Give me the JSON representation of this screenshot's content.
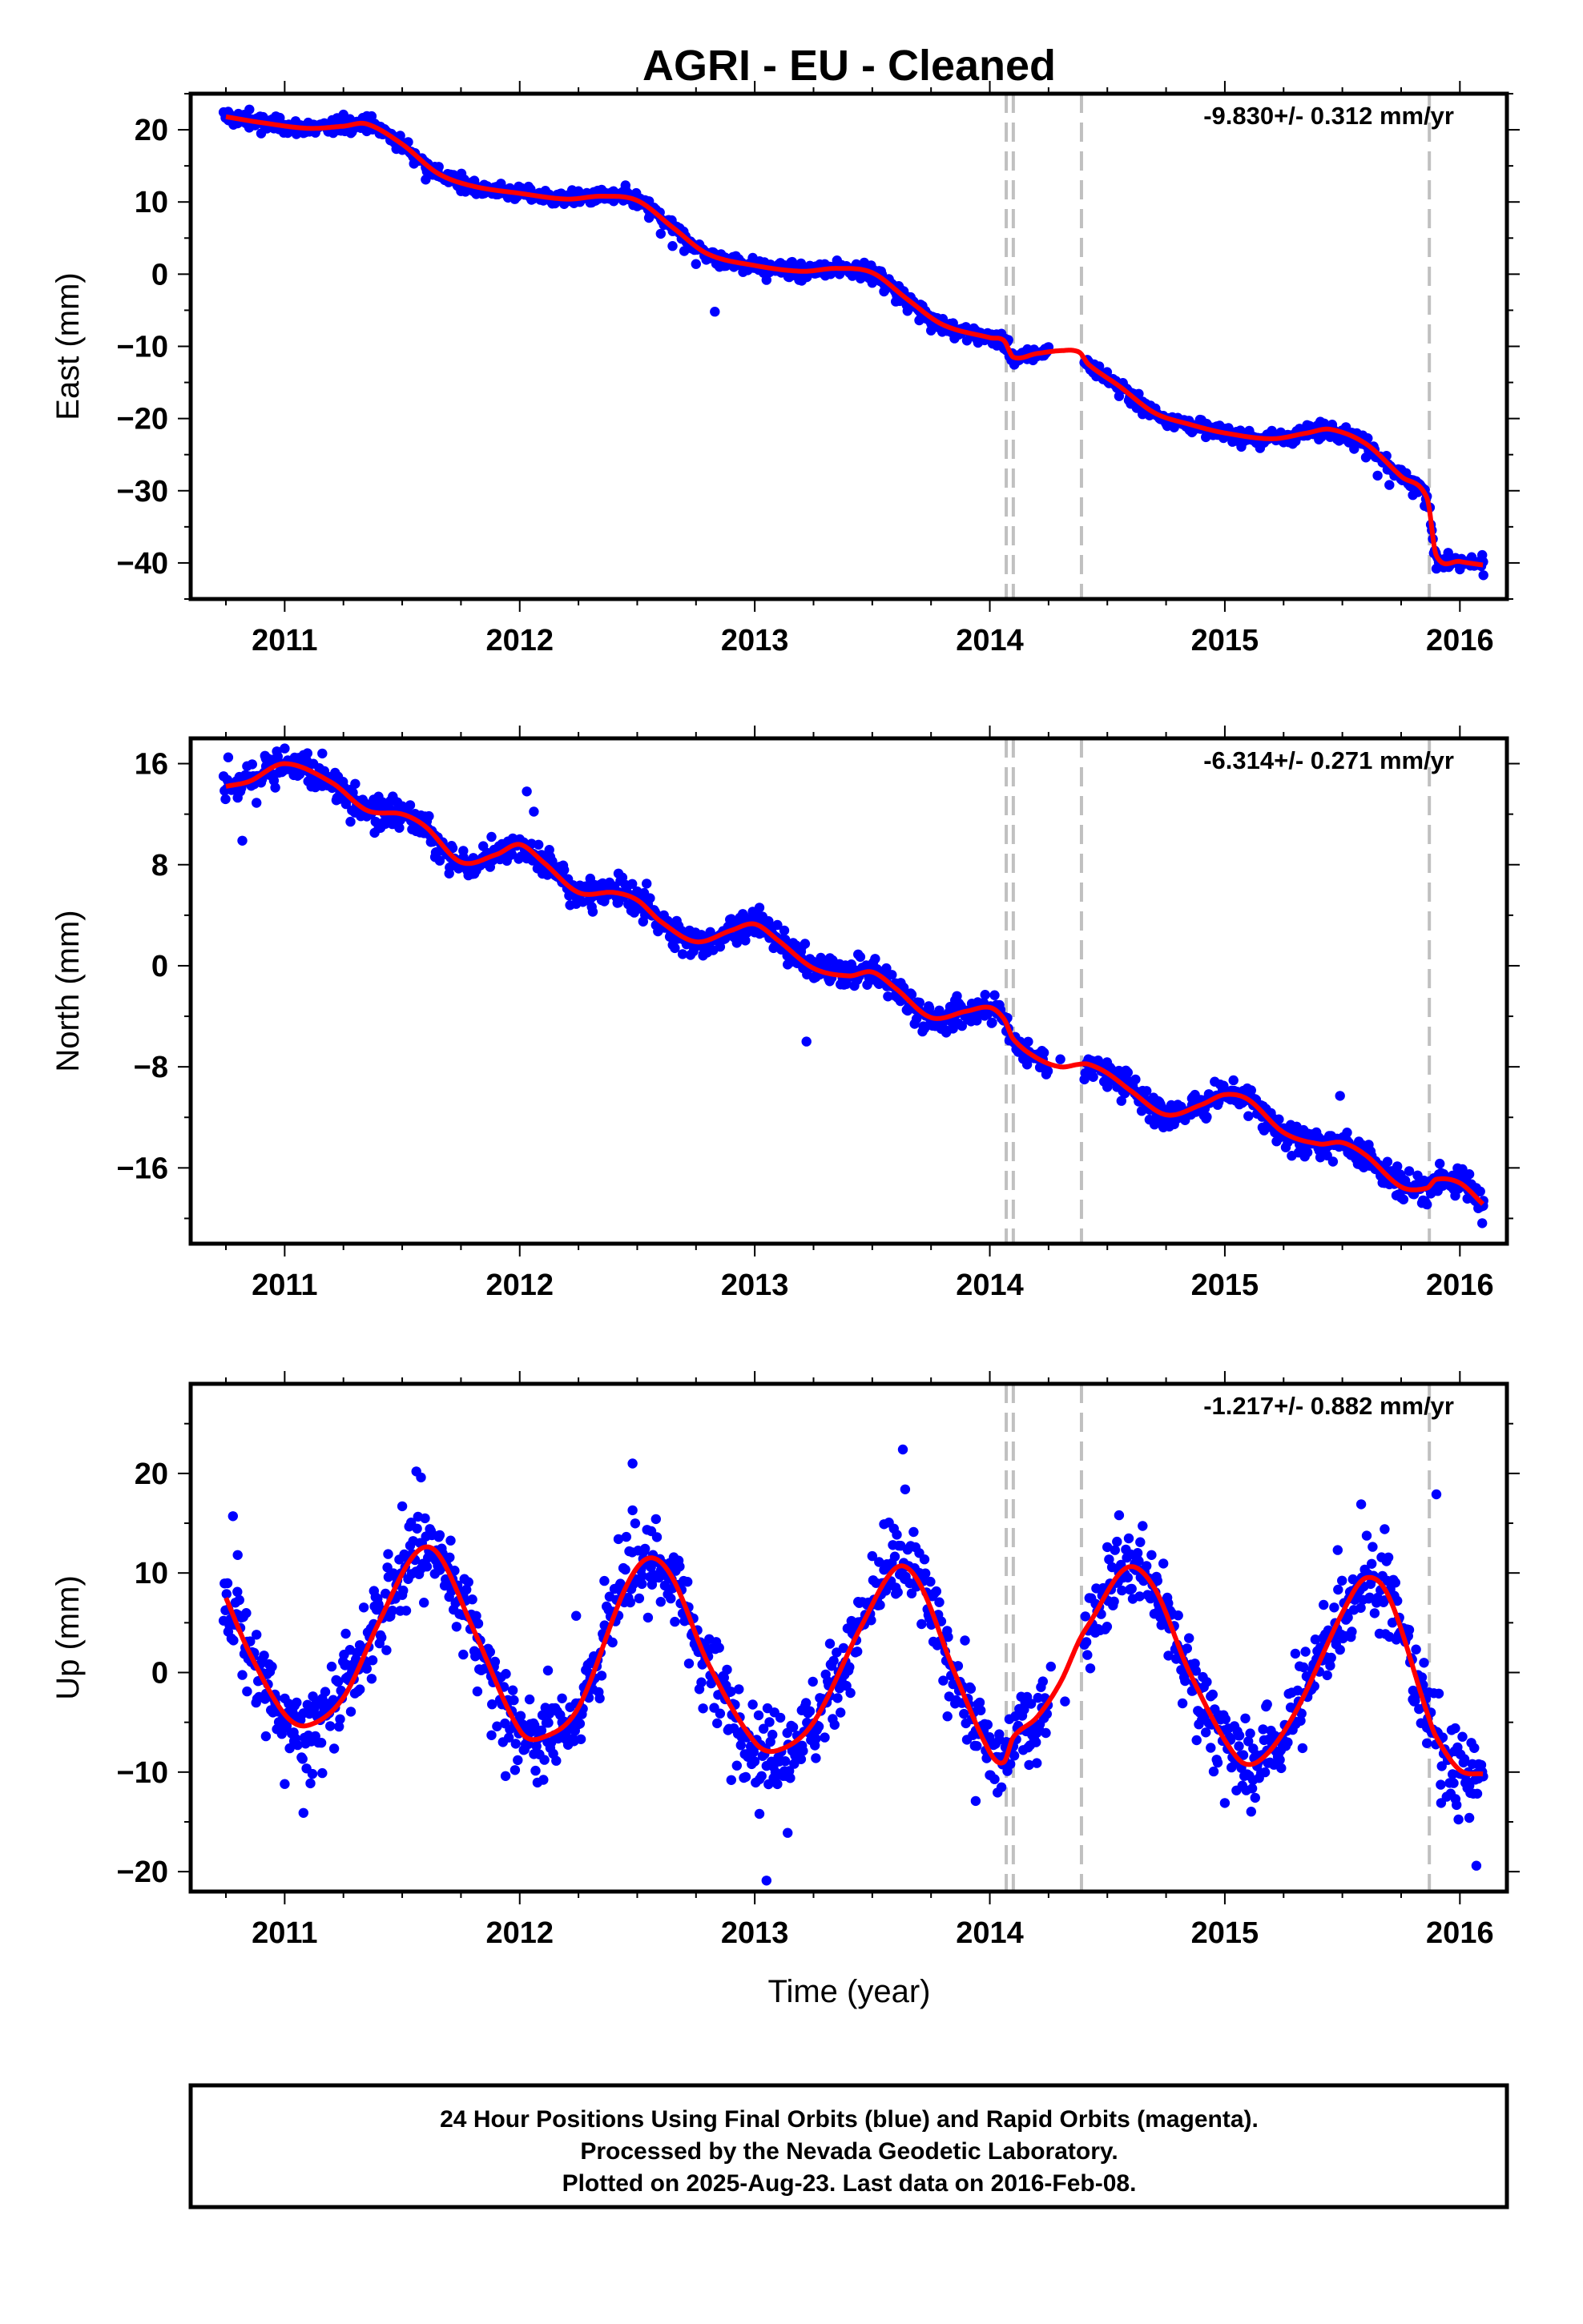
{
  "title": "AGRI  - EU - Cleaned",
  "x_axis_label": "Time (year)",
  "footer": {
    "line1": "24 Hour Positions Using Final Orbits (blue) and Rapid Orbits (magenta).",
    "line2": "Processed by the Nevada Geodetic Laboratory.",
    "line3": "Plotted on 2025-Aug-23. Last data on 2016-Feb-08."
  },
  "colors": {
    "final_orbits": "#0000ff",
    "model_fit": "#ff0000",
    "event_lines": "#c0c0c0",
    "frame": "#000000"
  },
  "chart_data": [
    {
      "type": "scatter",
      "component": "East",
      "ylabel": "East (mm)",
      "xlabel": "",
      "rate_label": "-9.830+/- 0.312 mm/yr",
      "xlim": [
        2010.6,
        2016.2
      ],
      "ylim": [
        -45,
        25
      ],
      "xticks": [
        2011,
        2012,
        2013,
        2014,
        2015,
        2016
      ],
      "yticks": [
        -40,
        -30,
        -20,
        -10,
        0,
        10,
        20
      ],
      "event_lines_x": [
        2014.07,
        2014.1,
        2014.39,
        2015.87
      ],
      "model_fit_knots": {
        "x": [
          2010.75,
          2010.9,
          2011.1,
          2011.25,
          2011.35,
          2011.5,
          2011.65,
          2011.8,
          2012.0,
          2012.2,
          2012.35,
          2012.5,
          2012.65,
          2012.8,
          2013.0,
          2013.2,
          2013.35,
          2013.5,
          2013.65,
          2013.8,
          2014.0,
          2014.06,
          2014.1,
          2014.2,
          2014.3,
          2014.38,
          2014.42,
          2014.55,
          2014.7,
          2014.85,
          2015.0,
          2015.2,
          2015.35,
          2015.45,
          2015.6,
          2015.75,
          2015.86,
          2015.9,
          2016.0,
          2016.1
        ],
        "y": [
          21.8,
          21.0,
          20.2,
          20.5,
          20.8,
          18.0,
          14.0,
          12.2,
          11.2,
          10.4,
          10.8,
          10.2,
          6.5,
          2.8,
          1.2,
          0.4,
          0.8,
          0.2,
          -3.5,
          -7.0,
          -8.8,
          -9.2,
          -11.5,
          -11.0,
          -10.6,
          -10.8,
          -12.5,
          -15.5,
          -19.2,
          -20.8,
          -22.0,
          -22.8,
          -22.0,
          -21.5,
          -23.5,
          -28.0,
          -31.0,
          -39.0,
          -39.8,
          -40.3
        ]
      },
      "series": [
        {
          "name": "Final Orbits",
          "points_x": [
            2010.76,
            2010.8,
            2010.85,
            2010.9,
            2010.95,
            2011.0,
            2011.05,
            2011.1,
            2011.15,
            2011.2,
            2011.25,
            2011.3,
            2011.35,
            2011.4,
            2011.45,
            2011.5,
            2011.55,
            2011.6,
            2011.65,
            2011.7,
            2011.75,
            2011.8,
            2011.85,
            2011.9,
            2011.95,
            2012.0,
            2012.05,
            2012.1,
            2012.15,
            2012.2,
            2012.25,
            2012.3,
            2012.35,
            2012.4,
            2012.45,
            2012.5,
            2012.55,
            2012.6,
            2012.65,
            2012.7,
            2012.75,
            2012.8,
            2012.85,
            2012.9,
            2012.95,
            2013.0,
            2013.05,
            2013.1,
            2013.15,
            2013.2,
            2013.25,
            2013.3,
            2013.35,
            2013.4,
            2013.45,
            2013.5,
            2013.55,
            2013.6,
            2013.65,
            2013.7,
            2013.75,
            2013.8,
            2013.85,
            2013.9,
            2013.95,
            2014.0,
            2014.03,
            2014.06,
            2014.12,
            2014.16,
            2014.2,
            2014.25,
            2014.42,
            2014.45,
            2014.5,
            2014.55,
            2014.6,
            2014.65,
            2014.7,
            2014.75,
            2014.8,
            2014.85,
            2014.9,
            2014.95,
            2015.0,
            2015.05,
            2015.1,
            2015.15,
            2015.2,
            2015.25,
            2015.3,
            2015.35,
            2015.4,
            2015.45,
            2015.5,
            2015.55,
            2015.6,
            2015.65,
            2015.7,
            2015.75,
            2015.8,
            2015.85,
            2015.9,
            2015.95,
            2016.0,
            2016.05,
            2016.1,
            2012.83,
            2011.6,
            2013.62
          ],
          "points_y": [
            22.5,
            20.9,
            22.8,
            19.5,
            21.5,
            20.1,
            19.4,
            21.0,
            20.6,
            19.8,
            22.1,
            20.7,
            21.9,
            20.2,
            18.6,
            17.2,
            15.3,
            13.1,
            13.6,
            12.9,
            11.5,
            12.8,
            11.2,
            12.1,
            10.6,
            11.8,
            10.3,
            11.2,
            9.8,
            10.9,
            11.5,
            9.9,
            11.6,
            10.1,
            12.3,
            9.4,
            7.8,
            5.6,
            3.9,
            3.2,
            1.4,
            2.6,
            1.0,
            2.2,
            0.3,
            1.7,
            -0.8,
            1.3,
            0.0,
            -0.9,
            0.8,
            -0.2,
            1.9,
            0.4,
            -0.6,
            -1.2,
            -2.4,
            -3.8,
            -5.1,
            -6.4,
            -7.8,
            -6.2,
            -8.9,
            -7.7,
            -9.5,
            -8.4,
            -9.9,
            -10.3,
            -11.9,
            -10.4,
            -11.4,
            -10.1,
            -12.1,
            -13.9,
            -14.8,
            -16.9,
            -17.8,
            -19.4,
            -18.6,
            -20.7,
            -19.9,
            -21.6,
            -20.2,
            -22.3,
            -21.4,
            -23.1,
            -22.0,
            -24.1,
            -21.7,
            -23.3,
            -22.1,
            -20.9,
            -22.9,
            -21.2,
            -22.6,
            -24.2,
            -25.4,
            -27.9,
            -29.2,
            -28.4,
            -30.6,
            -32.1,
            -40.8,
            -38.6,
            -40.9,
            -39.2,
            -41.7,
            -5.2,
            14.8,
            -2.1
          ]
        }
      ]
    },
    {
      "type": "scatter",
      "component": "North",
      "ylabel": "North (mm)",
      "xlabel": "",
      "rate_label": "-6.314+/- 0.271 mm/yr",
      "xlim": [
        2010.6,
        2016.2
      ],
      "ylim": [
        -22,
        18
      ],
      "xticks": [
        2011,
        2012,
        2013,
        2014,
        2015,
        2016
      ],
      "yticks": [
        -16,
        -8,
        0,
        8,
        16
      ],
      "event_lines_x": [
        2014.07,
        2014.1,
        2014.39,
        2015.87
      ],
      "model_fit_knots": {
        "x": [
          2010.75,
          2010.85,
          2011.0,
          2011.2,
          2011.35,
          2011.5,
          2011.6,
          2011.75,
          2011.9,
          2012.0,
          2012.1,
          2012.25,
          2012.4,
          2012.5,
          2012.6,
          2012.75,
          2012.9,
          2013.0,
          2013.1,
          2013.25,
          2013.4,
          2013.5,
          2013.6,
          2013.75,
          2013.9,
          2014.0,
          2014.06,
          2014.1,
          2014.2,
          2014.3,
          2014.38,
          2014.42,
          2014.5,
          2014.6,
          2014.75,
          2014.9,
          2015.0,
          2015.1,
          2015.25,
          2015.4,
          2015.5,
          2015.6,
          2015.75,
          2015.86,
          2015.9,
          2016.0,
          2016.1
        ],
        "y": [
          14.2,
          14.6,
          16.0,
          14.5,
          12.3,
          12.0,
          11.0,
          8.2,
          8.8,
          9.6,
          8.2,
          5.8,
          5.8,
          5.2,
          3.5,
          1.9,
          2.8,
          3.3,
          2.0,
          -0.2,
          -0.8,
          -0.5,
          -1.8,
          -4.1,
          -3.6,
          -3.3,
          -4.2,
          -5.8,
          -7.3,
          -8.0,
          -7.8,
          -7.8,
          -8.5,
          -9.9,
          -11.8,
          -11.0,
          -10.2,
          -10.6,
          -13.2,
          -14.1,
          -14.0,
          -15.0,
          -17.5,
          -17.6,
          -16.9,
          -17.2,
          -18.9
        ]
      },
      "series": [
        {
          "name": "Final Orbits",
          "points_x": [
            2010.76,
            2010.8,
            2010.84,
            2010.88,
            2010.92,
            2010.96,
            2011.0,
            2011.04,
            2011.1,
            2011.16,
            2011.22,
            2011.28,
            2011.34,
            2011.4,
            2011.46,
            2011.52,
            2011.58,
            2011.64,
            2011.7,
            2011.76,
            2011.82,
            2011.88,
            2011.94,
            2012.0,
            2012.06,
            2012.12,
            2012.18,
            2012.24,
            2012.3,
            2012.36,
            2012.42,
            2012.48,
            2012.54,
            2012.6,
            2012.66,
            2012.72,
            2012.78,
            2012.84,
            2012.9,
            2012.96,
            2013.02,
            2013.08,
            2013.14,
            2013.2,
            2013.26,
            2013.32,
            2013.38,
            2013.44,
            2013.5,
            2013.56,
            2013.62,
            2013.68,
            2013.74,
            2013.8,
            2013.86,
            2013.92,
            2013.98,
            2014.03,
            2014.12,
            2014.18,
            2014.24,
            2014.3,
            2014.44,
            2014.5,
            2014.56,
            2014.62,
            2014.68,
            2014.74,
            2014.8,
            2014.86,
            2014.92,
            2014.98,
            2015.04,
            2015.1,
            2015.16,
            2015.22,
            2015.28,
            2015.34,
            2015.4,
            2015.46,
            2015.52,
            2015.58,
            2015.64,
            2015.7,
            2015.76,
            2015.82,
            2015.86,
            2015.92,
            2015.98,
            2016.04,
            2016.1,
            2010.82,
            2013.22,
            2015.49,
            2011.3,
            2012.03,
            2014.01
          ],
          "points_y": [
            16.5,
            13.3,
            15.8,
            12.9,
            16.4,
            14.1,
            17.2,
            15.3,
            14.6,
            16.8,
            13.1,
            11.4,
            12.9,
            10.9,
            13.4,
            12.5,
            11.9,
            8.6,
            7.3,
            9.1,
            7.8,
            10.2,
            9.0,
            9.9,
            12.2,
            8.0,
            6.6,
            4.9,
            6.9,
            5.1,
            7.3,
            4.8,
            6.5,
            3.4,
            1.4,
            2.6,
            0.8,
            2.2,
            3.7,
            2.0,
            4.6,
            1.4,
            0.1,
            1.5,
            -0.9,
            0.6,
            -1.5,
            0.9,
            -1.1,
            -0.2,
            -2.8,
            -4.6,
            -3.2,
            -5.0,
            -2.4,
            -4.4,
            -2.3,
            -3.8,
            -6.6,
            -7.1,
            -8.6,
            -7.4,
            -8.8,
            -9.6,
            -10.7,
            -9.0,
            -11.4,
            -12.4,
            -11.0,
            -10.5,
            -12.1,
            -9.4,
            -9.9,
            -11.9,
            -12.8,
            -13.9,
            -12.6,
            -15.1,
            -13.6,
            -15.5,
            -13.2,
            -14.9,
            -16.1,
            -17.3,
            -18.5,
            -16.6,
            -18.9,
            -16.4,
            -18.2,
            -16.5,
            -18.6,
            9.9,
            -6.0,
            -10.3,
            14.4,
            13.8,
            -4.5
          ]
        }
      ]
    },
    {
      "type": "scatter",
      "component": "Up",
      "ylabel": "Up (mm)",
      "xlabel": "Time (year)",
      "rate_label": "-1.217+/- 0.882 mm/yr",
      "xlim": [
        2010.6,
        2016.2
      ],
      "ylim": [
        -22,
        29
      ],
      "xticks": [
        2011,
        2012,
        2013,
        2014,
        2015,
        2016
      ],
      "yticks": [
        -20,
        -10,
        0,
        10,
        20
      ],
      "event_lines_x": [
        2014.07,
        2014.1,
        2014.39,
        2015.87
      ],
      "model_fit_knots": {
        "x": [
          2010.75,
          2010.85,
          2011.0,
          2011.1,
          2011.25,
          2011.4,
          2011.55,
          2011.65,
          2011.8,
          2012.0,
          2012.1,
          2012.25,
          2012.45,
          2012.55,
          2012.65,
          2012.8,
          2013.0,
          2013.1,
          2013.25,
          2013.45,
          2013.6,
          2013.7,
          2013.85,
          2014.0,
          2014.06,
          2014.1,
          2014.2,
          2014.3,
          2014.38,
          2014.42,
          2014.58,
          2014.7,
          2014.85,
          2015.05,
          2015.15,
          2015.3,
          2015.5,
          2015.6,
          2015.7,
          2015.86,
          2015.9,
          2016.0,
          2016.1
        ],
        "y": [
          7.5,
          2.0,
          -4.2,
          -5.3,
          -2.5,
          5.0,
          11.8,
          12.0,
          4.5,
          -5.8,
          -6.5,
          -3.5,
          8.5,
          11.5,
          9.5,
          1.0,
          -7.0,
          -7.8,
          -5.0,
          4.5,
          10.5,
          9.0,
          0.0,
          -8.0,
          -9.0,
          -6.5,
          -4.5,
          -1.0,
          3.2,
          4.8,
          10.5,
          8.5,
          0.0,
          -8.5,
          -8.8,
          -4.0,
          6.0,
          9.5,
          7.5,
          -4.0,
          -6.5,
          -9.8,
          -10.2
        ]
      },
      "series": [
        {
          "name": "Final Orbits",
          "points_x": [
            2010.76,
            2010.8,
            2010.84,
            2010.88,
            2010.92,
            2010.96,
            2011.0,
            2011.04,
            2011.08,
            2011.12,
            2011.16,
            2011.2,
            2011.26,
            2011.32,
            2011.38,
            2011.44,
            2011.5,
            2011.54,
            2011.58,
            2011.62,
            2011.66,
            2011.7,
            2011.76,
            2011.82,
            2011.88,
            2011.94,
            2012.0,
            2012.06,
            2012.12,
            2012.18,
            2012.24,
            2012.3,
            2012.36,
            2012.42,
            2012.48,
            2012.52,
            2012.56,
            2012.6,
            2012.66,
            2012.72,
            2012.78,
            2012.84,
            2012.9,
            2012.96,
            2013.02,
            2013.08,
            2013.14,
            2013.2,
            2013.26,
            2013.32,
            2013.38,
            2013.44,
            2013.5,
            2013.55,
            2013.6,
            2013.64,
            2013.7,
            2013.76,
            2013.82,
            2013.88,
            2013.94,
            2014.0,
            2014.04,
            2014.14,
            2014.2,
            2014.26,
            2014.32,
            2014.45,
            2014.5,
            2014.55,
            2014.6,
            2014.64,
            2014.7,
            2014.76,
            2014.82,
            2014.88,
            2014.94,
            2015.0,
            2015.06,
            2015.12,
            2015.18,
            2015.24,
            2015.3,
            2015.36,
            2015.42,
            2015.48,
            2015.54,
            2015.58,
            2015.62,
            2015.68,
            2015.74,
            2015.8,
            2015.86,
            2015.92,
            2015.98,
            2016.04,
            2016.08,
            2012.48,
            2013.63,
            2011.56,
            2013.05,
            2016.07,
            2015.9,
            2011.98,
            2010.78
          ],
          "points_y": [
            4.1,
            11.8,
            -1.9,
            3.8,
            -6.4,
            -3.1,
            -11.2,
            -6.9,
            -14.1,
            -2.4,
            -10.1,
            0.6,
            3.9,
            -1.7,
            8.2,
            11.9,
            16.7,
            9.9,
            19.6,
            14.1,
            10.3,
            7.6,
            1.8,
            -1.9,
            -6.3,
            -10.4,
            -4.4,
            -8.2,
            0.2,
            -2.6,
            5.7,
            -0.6,
            9.2,
            13.4,
            16.3,
            8.9,
            14.2,
            7.1,
            5.1,
            0.9,
            -3.6,
            -5.1,
            -10.8,
            -5.9,
            -14.2,
            -10.6,
            -16.1,
            -3.8,
            -8.6,
            2.9,
            0.7,
            7.1,
            11.7,
            14.9,
            7.9,
            18.4,
            12.0,
            3.1,
            -4.4,
            -1.8,
            -12.9,
            -10.3,
            -6.2,
            -3.6,
            -9.1,
            0.6,
            -2.9,
            6.9,
            12.6,
            15.8,
            8.4,
            13.1,
            5.9,
            1.7,
            -3.1,
            -6.8,
            -2.4,
            -13.1,
            -7.4,
            -10.8,
            -3.2,
            -9.6,
            1.9,
            -1.4,
            6.8,
            12.3,
            4.1,
            16.9,
            9.6,
            14.4,
            3.8,
            -2.7,
            -7.1,
            -13.1,
            -5.6,
            -14.6,
            -9.2,
            21.0,
            22.4,
            20.2,
            -20.9,
            -19.4,
            17.9,
            -9.8,
            15.7
          ]
        }
      ]
    }
  ]
}
